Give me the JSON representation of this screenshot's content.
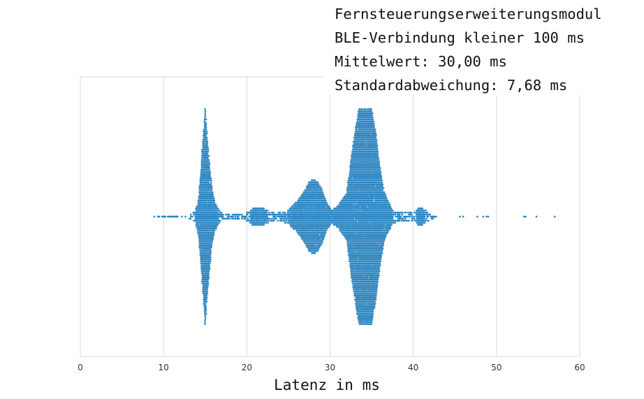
{
  "chart_data": {
    "type": "scatter",
    "subtype": "swarm",
    "annotation_lines": [
      "Fernsteuerungserweiterungsmodul",
      "BLE-Verbindung kleiner 100 ms",
      "Mittelwert: 30,00 ms",
      "Standardabweichung: 7,68 ms"
    ],
    "xlabel": "Latenz in ms",
    "ylabel": "",
    "xlim": [
      0,
      60
    ],
    "xticks": [
      0,
      10,
      20,
      30,
      40,
      50,
      60
    ],
    "grid": true,
    "legend": "none",
    "stats": {
      "mean": 30.0,
      "std": 7.68
    },
    "distribution_profile": {
      "x": [
        8.8,
        10.2,
        11.8,
        13.2,
        13.8,
        14.2,
        14.5,
        14.8,
        15.0,
        15.2,
        15.5,
        15.8,
        16.2,
        16.6,
        17.2,
        18.5,
        20.0,
        21.0,
        22.0,
        23.5,
        25.0,
        26.0,
        27.0,
        27.5,
        28.0,
        28.5,
        29.0,
        29.5,
        30.2,
        31.0,
        32.0,
        32.5,
        33.0,
        33.5,
        34.0,
        34.5,
        35.0,
        35.5,
        36.0,
        36.6,
        37.5,
        38.5,
        40.0,
        40.8,
        41.5,
        42.2,
        43.0
      ],
      "half_width": [
        2,
        1,
        2,
        3,
        8,
        26,
        70,
        120,
        155,
        120,
        80,
        40,
        20,
        10,
        4,
        3,
        6,
        14,
        12,
        5,
        10,
        22,
        38,
        50,
        54,
        50,
        40,
        22,
        10,
        16,
        34,
        80,
        120,
        155,
        155,
        155,
        155,
        120,
        70,
        32,
        10,
        6,
        6,
        14,
        9,
        4,
        0
      ]
    },
    "outliers": [
      45.6,
      46.0,
      47.7,
      48.4,
      48.8,
      49.0,
      53.3,
      53.5,
      54.8,
      57.0
    ],
    "colors": {
      "points": "#2f86c0",
      "grid": "#d9d9d9",
      "text": "#111111"
    }
  }
}
